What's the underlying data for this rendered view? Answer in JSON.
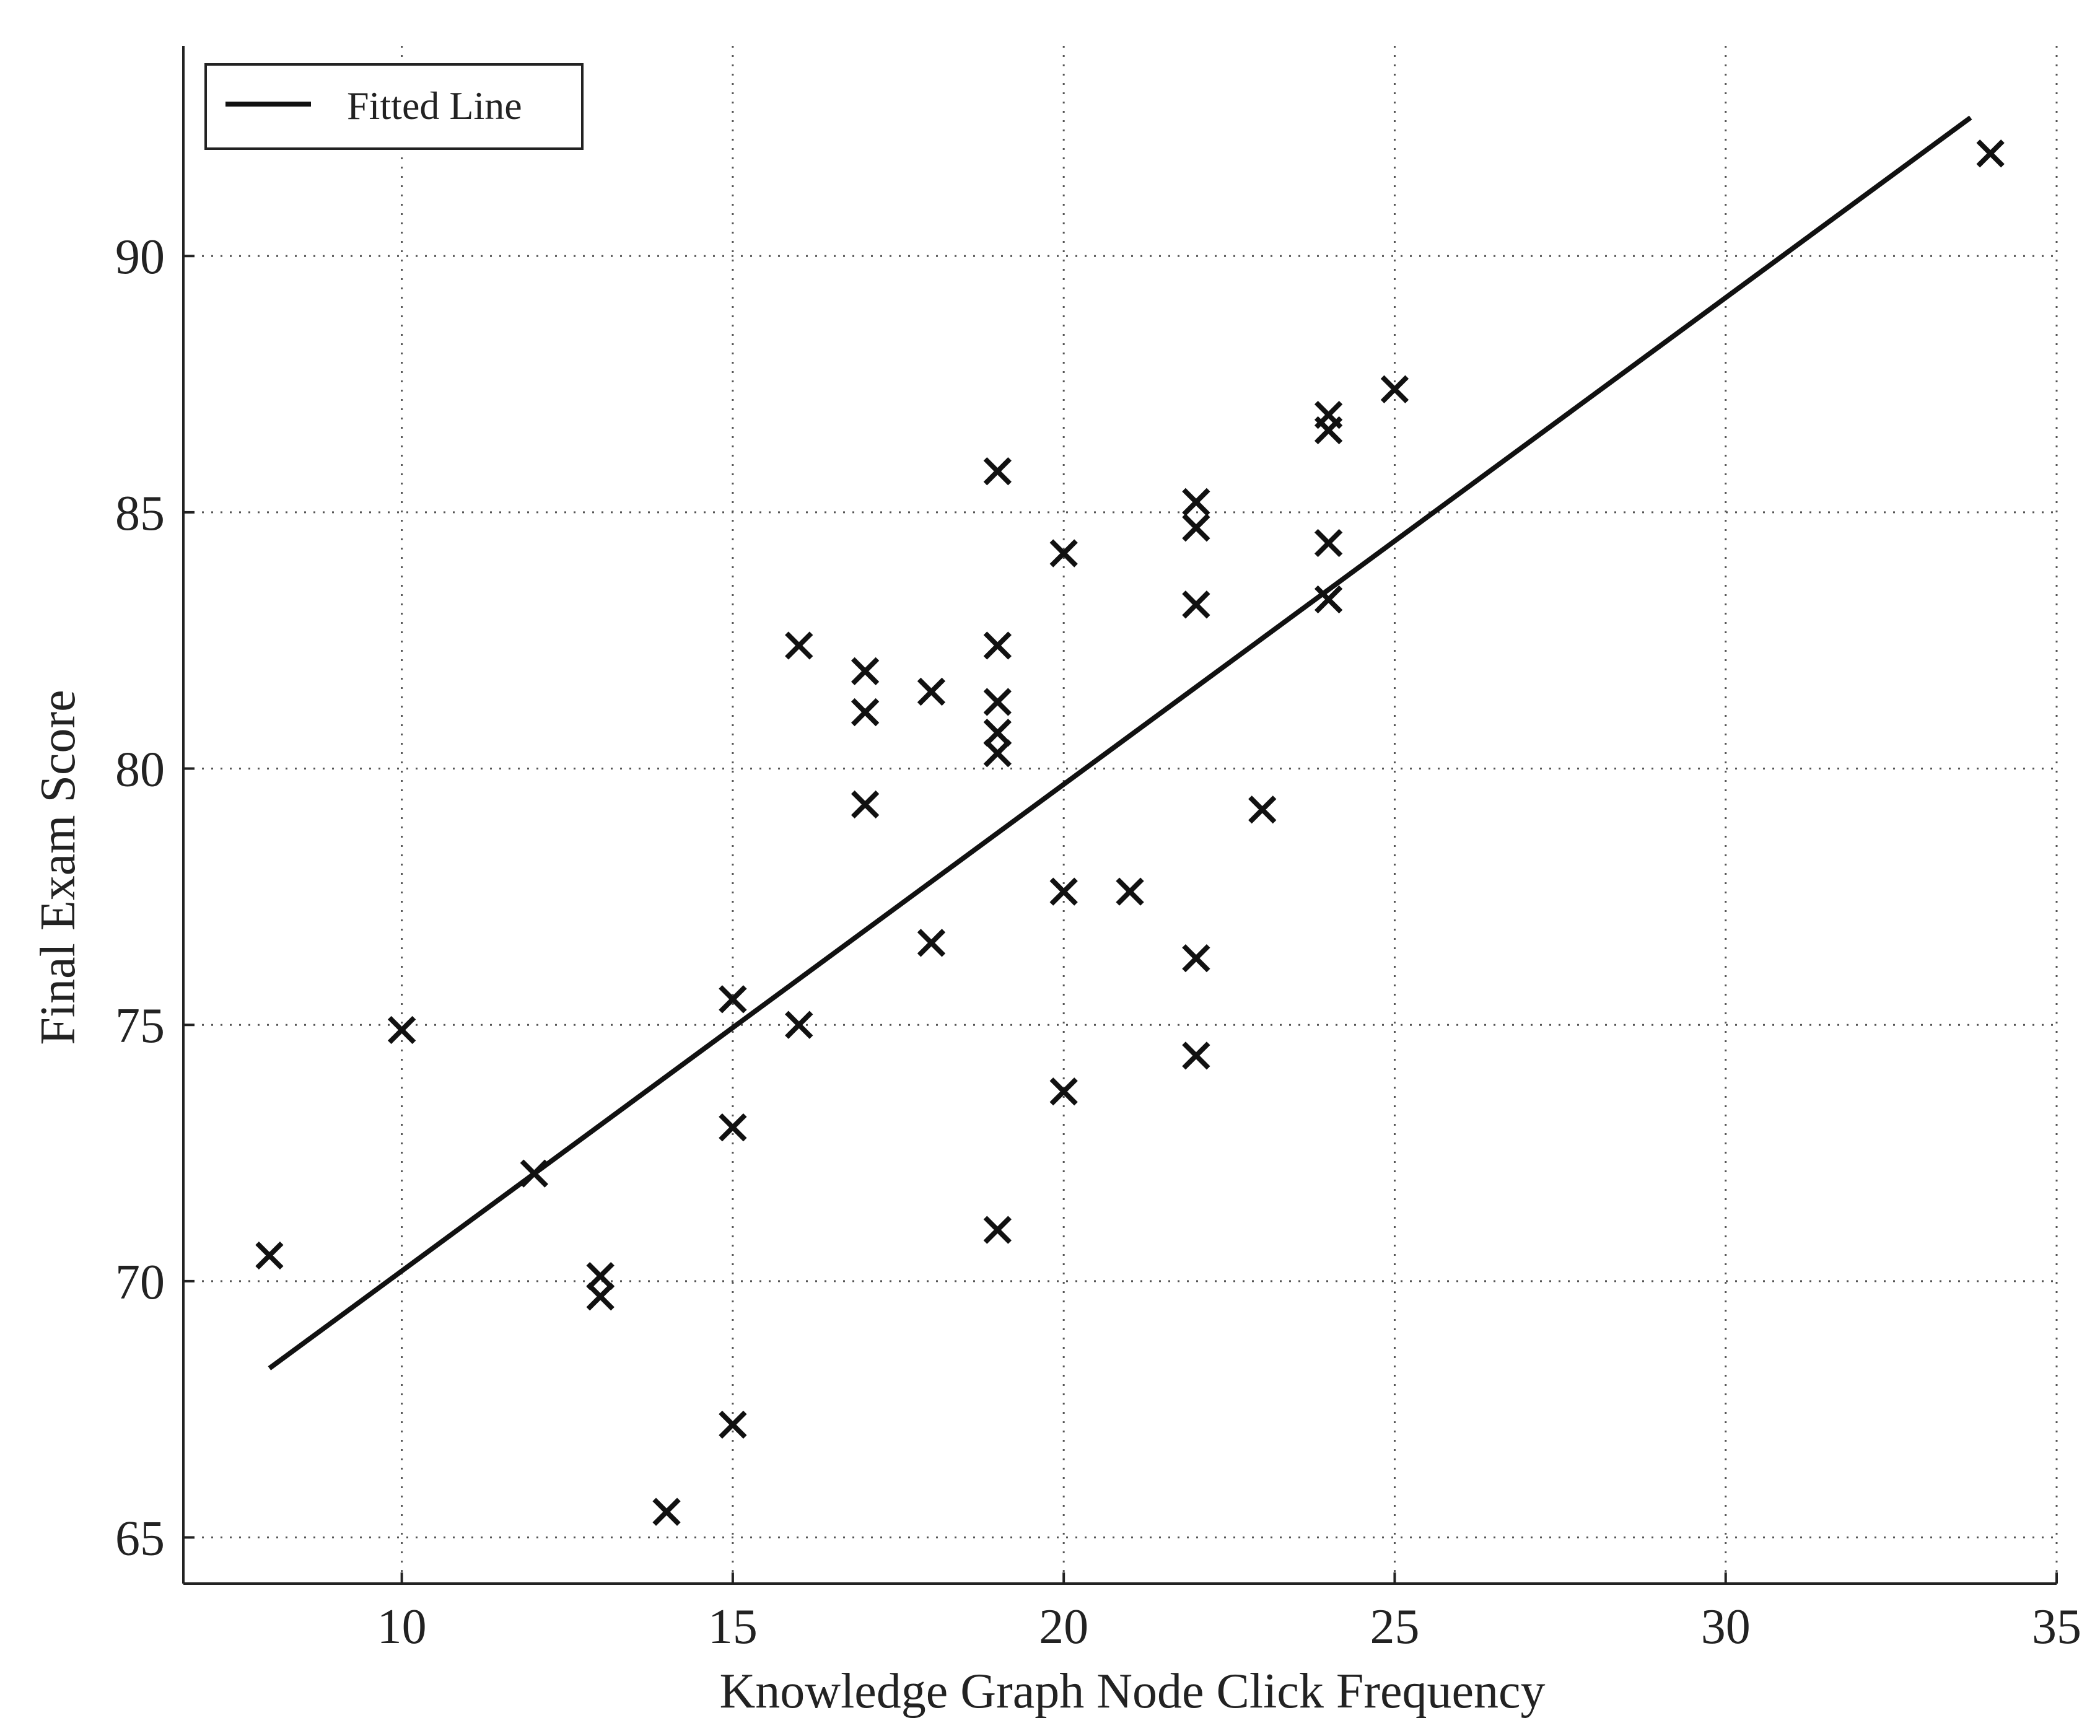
{
  "chart_data": {
    "type": "scatter",
    "title": "",
    "xlabel": "Knowledge Graph Node Click Frequency",
    "ylabel": "Final Exam Score",
    "xlim": [
      6.7,
      35
    ],
    "ylim": [
      64.1,
      94.1
    ],
    "xticks": [
      10,
      15,
      20,
      25,
      30,
      35
    ],
    "yticks": [
      65,
      70,
      75,
      80,
      85,
      90
    ],
    "grid": true,
    "legend_position": "top-left",
    "colors": {
      "points": "#111111",
      "line": "#111111",
      "grid": "#555555",
      "axes": "#222222"
    },
    "series": [
      {
        "marker": "x",
        "points": [
          {
            "x": 8,
            "y": 70.5
          },
          {
            "x": 10,
            "y": 74.9
          },
          {
            "x": 12,
            "y": 72.1
          },
          {
            "x": 13,
            "y": 70.1
          },
          {
            "x": 13,
            "y": 69.7
          },
          {
            "x": 14,
            "y": 65.5
          },
          {
            "x": 15,
            "y": 75.5
          },
          {
            "x": 15,
            "y": 73.0
          },
          {
            "x": 15,
            "y": 67.2
          },
          {
            "x": 16,
            "y": 82.4
          },
          {
            "x": 16,
            "y": 75.0
          },
          {
            "x": 17,
            "y": 81.9
          },
          {
            "x": 17,
            "y": 81.1
          },
          {
            "x": 17,
            "y": 79.3
          },
          {
            "x": 18,
            "y": 81.5
          },
          {
            "x": 18,
            "y": 76.6
          },
          {
            "x": 19,
            "y": 85.8
          },
          {
            "x": 19,
            "y": 82.4
          },
          {
            "x": 19,
            "y": 81.3
          },
          {
            "x": 19,
            "y": 80.7
          },
          {
            "x": 19,
            "y": 80.3
          },
          {
            "x": 19,
            "y": 71.0
          },
          {
            "x": 20,
            "y": 84.2
          },
          {
            "x": 20,
            "y": 77.6
          },
          {
            "x": 20,
            "y": 73.7
          },
          {
            "x": 21,
            "y": 77.6
          },
          {
            "x": 22,
            "y": 85.2
          },
          {
            "x": 22,
            "y": 84.7
          },
          {
            "x": 22,
            "y": 83.2
          },
          {
            "x": 22,
            "y": 76.3
          },
          {
            "x": 22,
            "y": 74.4
          },
          {
            "x": 23,
            "y": 79.2
          },
          {
            "x": 24,
            "y": 86.9
          },
          {
            "x": 24,
            "y": 86.6
          },
          {
            "x": 24,
            "y": 84.4
          },
          {
            "x": 24,
            "y": 83.3
          },
          {
            "x": 25,
            "y": 87.4
          },
          {
            "x": 34,
            "y": 92.0
          }
        ]
      },
      {
        "name": "Fitted Line",
        "type": "line",
        "points": [
          {
            "x": 8,
            "y": 68.3
          },
          {
            "x": 33.7,
            "y": 92.7
          }
        ]
      }
    ]
  }
}
